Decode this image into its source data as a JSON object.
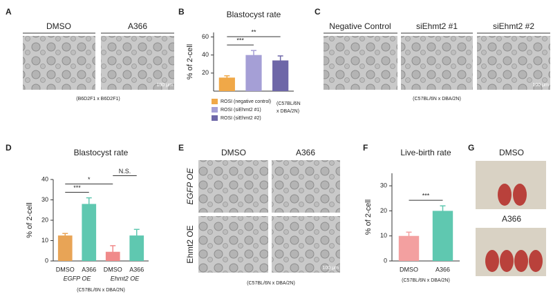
{
  "panels": {
    "labels": [
      "A",
      "B",
      "C",
      "D",
      "E",
      "F",
      "G"
    ],
    "a": {
      "columns": [
        "DMSO",
        "A366"
      ],
      "scale": "100 μm",
      "cross": "(B6D2F1 x B6D2F1)"
    },
    "c": {
      "columns": [
        "Negative Control",
        "siEhmt2 #1",
        "siEhmt2 #2"
      ],
      "scale": "100 μm",
      "cross": "(C57BL/6N x DBA/2N)"
    },
    "e": {
      "columns": [
        "DMSO",
        "A366"
      ],
      "rows": [
        "EGFP OE",
        "Ehmt2 OE"
      ],
      "scale": "100 μm",
      "cross": "(C57BL/6N x DBA/2N)"
    },
    "g": {
      "rows": [
        "DMSO",
        "A366"
      ]
    }
  },
  "chart_data": [
    {
      "type": "bar",
      "title": "Blastocyst rate",
      "y_label": "% of 2-cell",
      "categories": [
        "ROSI (negative control)",
        "ROSI (siEhmt2 #1)",
        "ROSI (siEhmt2 #2)"
      ],
      "values": [
        15,
        40,
        34
      ],
      "errors": [
        2,
        5,
        5
      ],
      "colors": [
        "#f0a848",
        "#a59fd6",
        "#6e67a8"
      ],
      "ylim": [
        0,
        65
      ],
      "yticks": [
        20,
        40,
        60
      ],
      "legend": true,
      "note": [
        "(C57BL/6N",
        "x DBA/2N)"
      ],
      "annotations": [
        {
          "text": "***",
          "between": [
            0,
            1
          ]
        },
        {
          "text": "**",
          "between": [
            0,
            2
          ]
        }
      ]
    },
    {
      "type": "bar",
      "title": "Blastocyst rate",
      "y_label": "% of 2-cell",
      "categories": [
        "DMSO",
        "A366",
        "DMSO",
        "A366"
      ],
      "groups": [
        "EGFP OE",
        "Ehmt2 OE"
      ],
      "values": [
        12.5,
        28,
        4.5,
        12.5
      ],
      "errors": [
        1,
        3,
        3,
        3
      ],
      "colors": [
        "#e8a456",
        "#5fc8b0",
        "#f08a8a",
        "#5fc8b0"
      ],
      "ylim": [
        0,
        40
      ],
      "yticks": [
        0,
        10,
        20,
        30,
        40
      ],
      "note": [
        "(C57BL/6N x DBA/2N)"
      ],
      "annotations": [
        {
          "text": "***",
          "between": [
            0,
            1
          ]
        },
        {
          "text": "*",
          "between": [
            0,
            2
          ]
        },
        {
          "text": "N.S.",
          "between": [
            2,
            3
          ]
        }
      ]
    },
    {
      "type": "bar",
      "title": "Live-birth rate",
      "y_label": "% of 2-cell",
      "categories": [
        "DMSO",
        "A366"
      ],
      "values": [
        10,
        20
      ],
      "errors": [
        1.5,
        2
      ],
      "colors": [
        "#f3a0a0",
        "#5fc8b0"
      ],
      "ylim": [
        0,
        35
      ],
      "yticks": [
        0,
        10,
        20,
        30
      ],
      "note": [
        "(C57BL/6N x DBA/2N)"
      ],
      "annotations": [
        {
          "text": "***",
          "between": [
            0,
            1
          ]
        }
      ]
    }
  ]
}
